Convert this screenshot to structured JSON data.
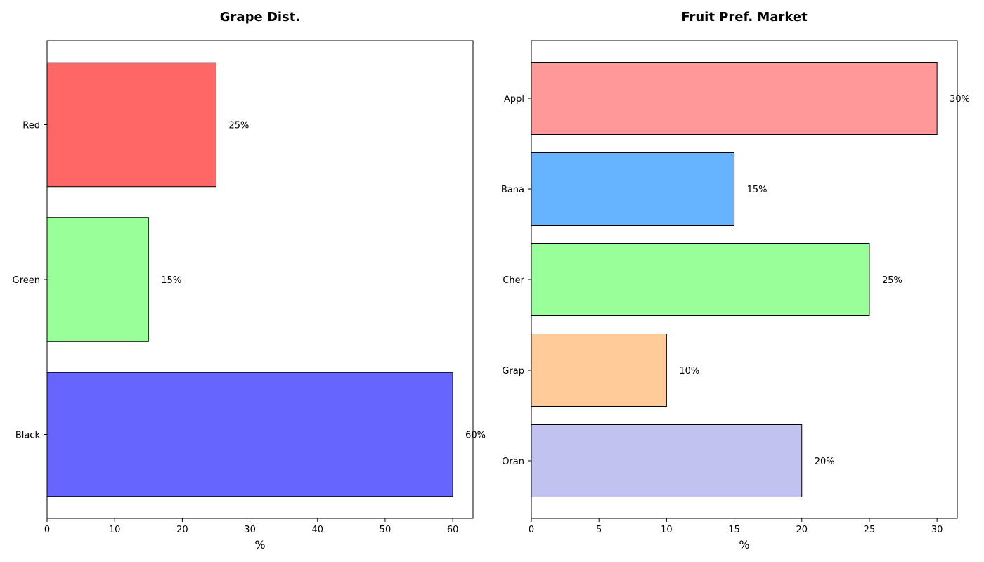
{
  "chart_data": [
    {
      "type": "bar",
      "orientation": "horizontal",
      "title": "Grape Dist.",
      "xlabel": "%",
      "ylabel": "",
      "categories": [
        "Red",
        "Green",
        "Black"
      ],
      "values": [
        25,
        15,
        60
      ],
      "labels": [
        "25%",
        "15%",
        "60%"
      ],
      "colors": [
        "#ff6666",
        "#99ff99",
        "#6666ff"
      ],
      "xlim": [
        0,
        63
      ],
      "xticks": [
        0,
        10,
        20,
        30,
        40,
        50,
        60
      ],
      "grid": false
    },
    {
      "type": "bar",
      "orientation": "horizontal",
      "title": "Fruit Pref. Market",
      "xlabel": "%",
      "ylabel": "",
      "categories": [
        "Appl",
        "Bana",
        "Cher",
        "Grap",
        "Oran"
      ],
      "values": [
        30,
        15,
        25,
        10,
        20
      ],
      "labels": [
        "30%",
        "15%",
        "25%",
        "10%",
        "20%"
      ],
      "colors": [
        "#ff9999",
        "#66b3ff",
        "#99ff99",
        "#ffcc99",
        "#c2c2f0"
      ],
      "xlim": [
        0,
        31.5
      ],
      "xticks": [
        0,
        5,
        10,
        15,
        20,
        25,
        30
      ],
      "grid": false
    }
  ]
}
